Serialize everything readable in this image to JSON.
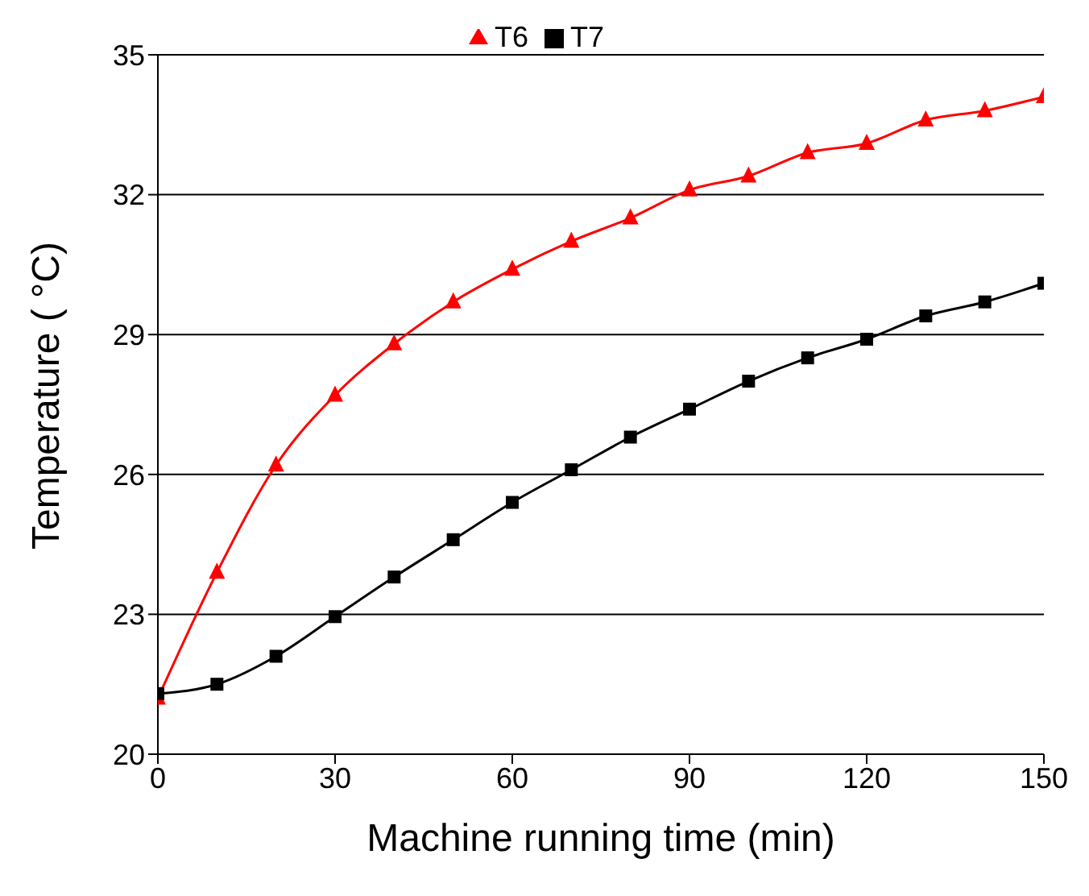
{
  "chart_data": {
    "type": "line",
    "xlabel": "Machine running time (min)",
    "ylabel": "Temperature ( °C)",
    "x": [
      0,
      10,
      20,
      30,
      40,
      50,
      60,
      70,
      80,
      90,
      100,
      110,
      120,
      130,
      140,
      150
    ],
    "series": [
      {
        "name": "T6",
        "color": "#ff0000",
        "marker": "triangle",
        "values": [
          21.2,
          23.9,
          26.2,
          27.7,
          28.8,
          29.7,
          30.4,
          31.0,
          31.5,
          32.1,
          32.4,
          32.9,
          33.1,
          33.6,
          33.8,
          34.1
        ]
      },
      {
        "name": "T7",
        "color": "#000000",
        "marker": "square",
        "values": [
          21.3,
          21.5,
          22.1,
          22.95,
          23.8,
          24.6,
          25.4,
          26.1,
          26.8,
          27.4,
          28.0,
          28.5,
          28.9,
          29.4,
          29.7,
          30.1
        ]
      }
    ],
    "xlim": [
      0,
      150
    ],
    "xticks": [
      0,
      30,
      60,
      90,
      120,
      150
    ],
    "ylim": [
      20,
      35
    ],
    "yticks": [
      20,
      23,
      26,
      29,
      32,
      35
    ],
    "grid": "y",
    "legend": "top",
    "line_style": "solid"
  }
}
